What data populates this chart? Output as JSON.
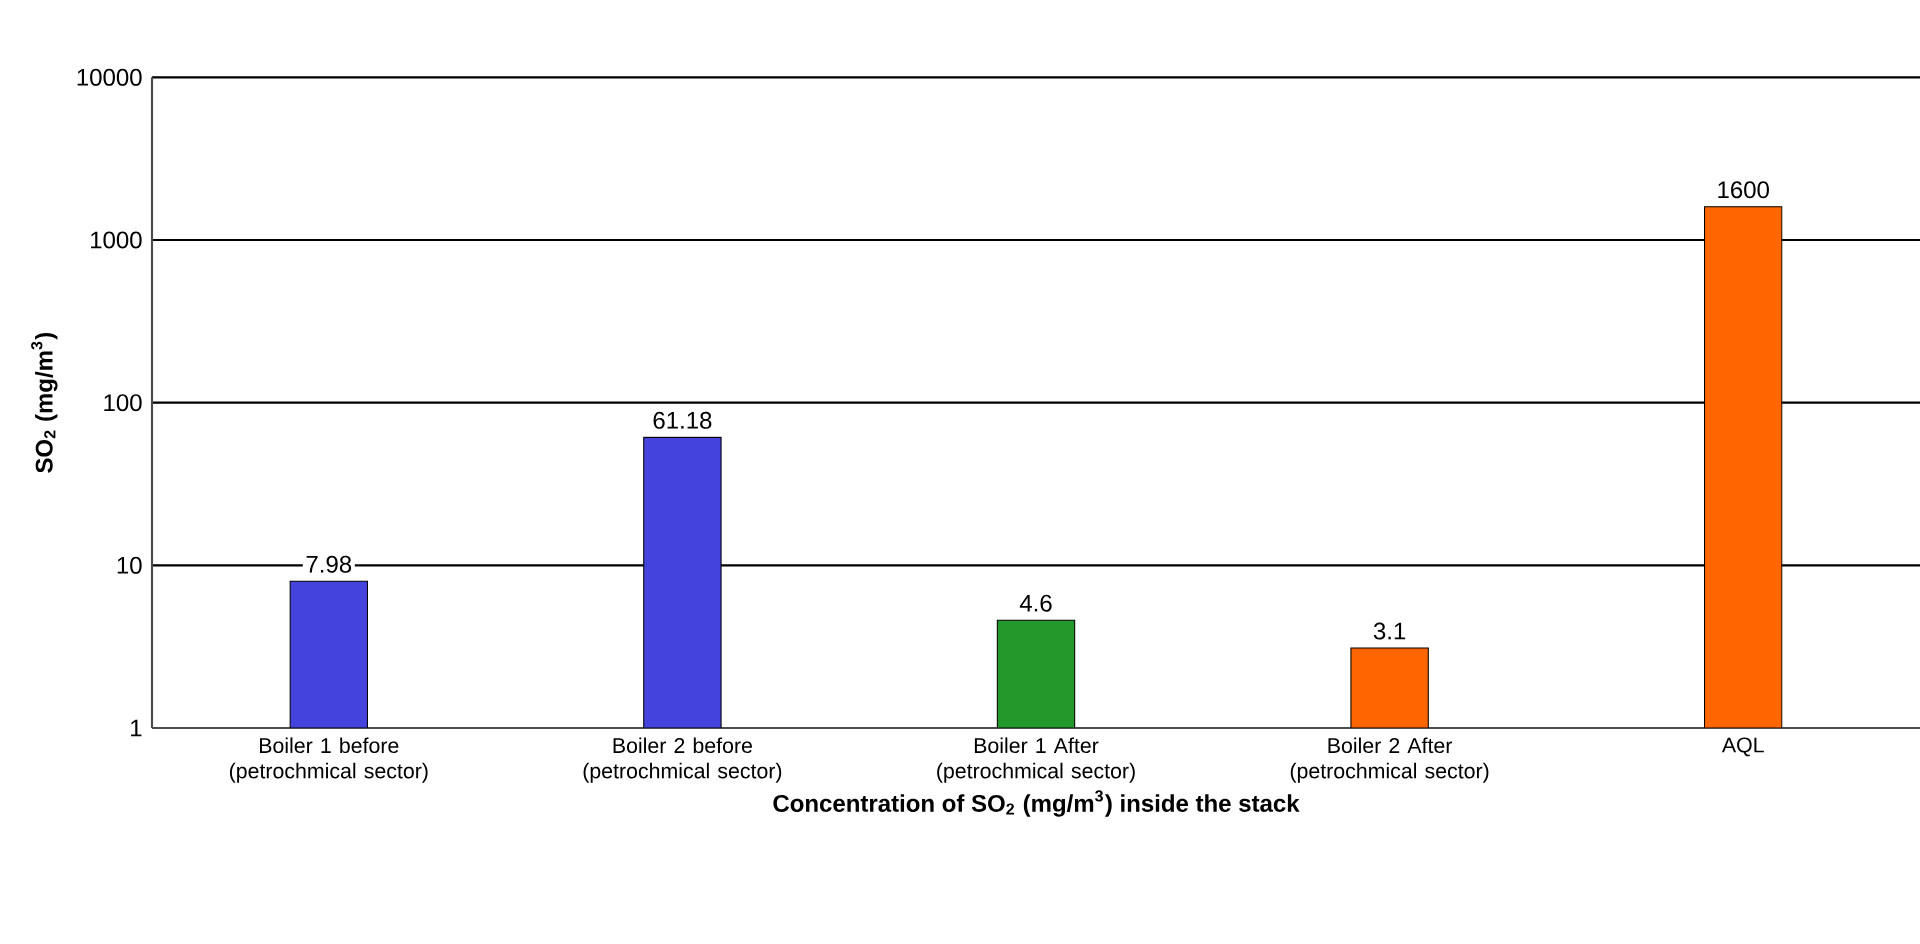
{
  "chart_data": {
    "type": "bar",
    "categories": [
      "Boiler 1 before (petrochmical sector)",
      "Boiler 2 before (petrochmical sector)",
      "Boiler 1 After (petrochmical sector)",
      "Boiler 2 After (petrochmical sector)",
      "AQL"
    ],
    "values": [
      7.98,
      61.18,
      4.6,
      3.1,
      1600
    ],
    "colors": [
      "#4444dd",
      "#4444dd",
      "#22992a",
      "#ff6600",
      "#ff6600"
    ],
    "xlabel": "Concentration of SO$_{2}$ (mg/m$^{3}$) inside the stack",
    "ylabel": "SO$_{2}$ (mg/m$^{3}$)",
    "log": true,
    "ylim": [
      1,
      10000
    ],
    "yticks": [
      1,
      10,
      100,
      1000,
      10000
    ],
    "grid": "y",
    "data_labels": true
  }
}
